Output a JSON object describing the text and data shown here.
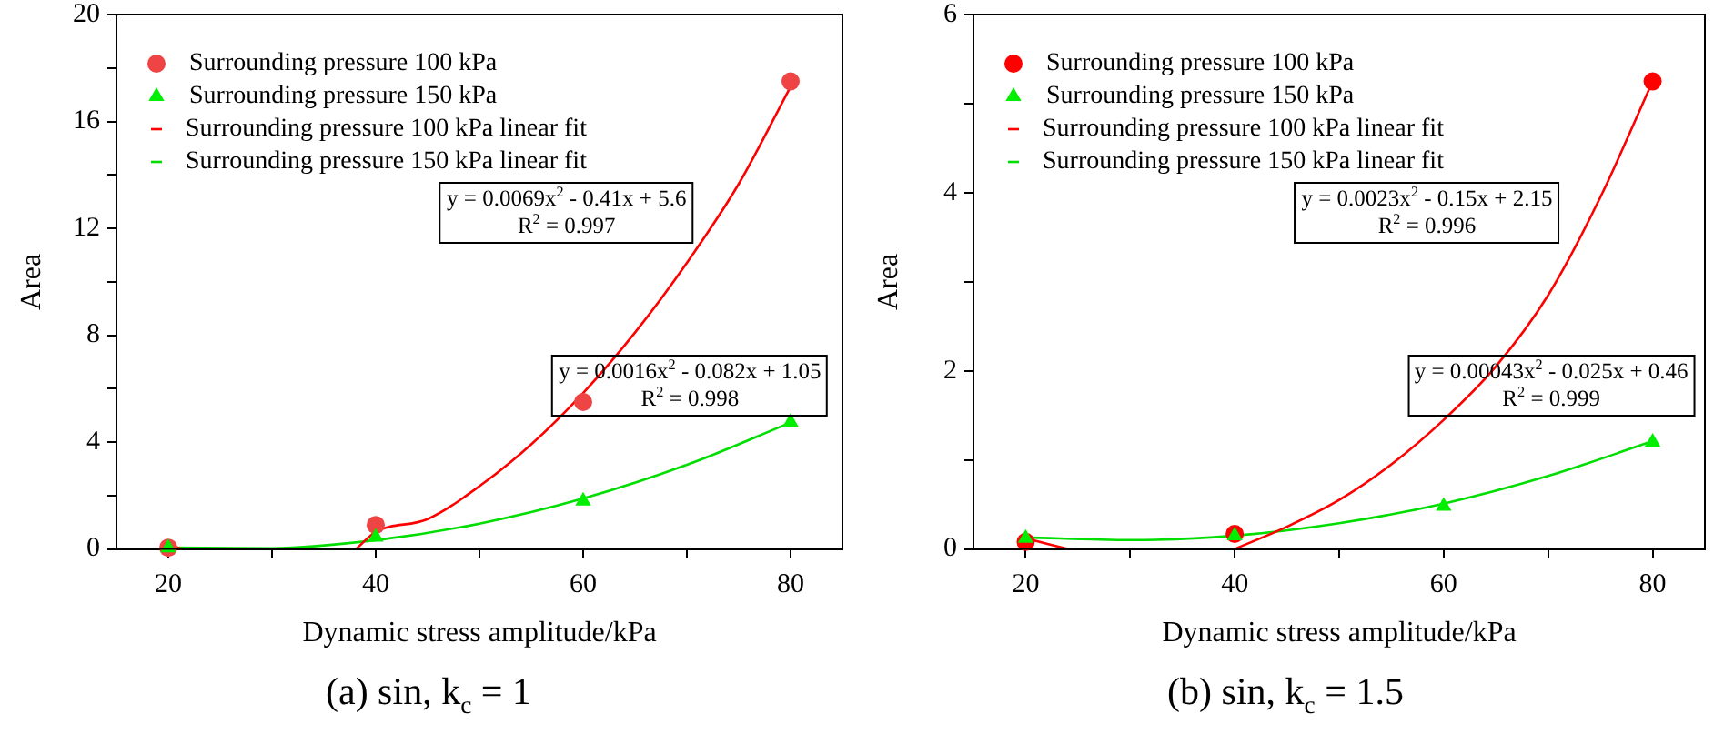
{
  "chart_data": [
    {
      "type": "scatter",
      "title": "(a) sin, k$_{c}$ = 1",
      "xlabel": "Dynamic stress amplitude/kPa",
      "ylabel": "Area",
      "x": [
        20,
        40,
        60,
        80
      ],
      "series": [
        {
          "name": "Surrounding pressure 100 kPa",
          "type": "scatter",
          "marker": "circle",
          "color": "#ee4444",
          "values": [
            0.05,
            0.9,
            5.5,
            17.5
          ]
        },
        {
          "name": "Surrounding pressure 150 kPa",
          "type": "scatter",
          "marker": "triangle",
          "color": "#00ee00",
          "values": [
            0.05,
            0.45,
            1.8,
            4.75
          ]
        },
        {
          "name": "Surrounding pressure 100 kPa linear fit",
          "type": "line",
          "marker": "none",
          "color": "#ff0000",
          "x": [
            20,
            21.3,
            30,
            38.1,
            40,
            45,
            50,
            55,
            60,
            65,
            70,
            75,
            80
          ],
          "values": [
            0.16,
            0,
            null,
            0,
            0.64,
            1.12,
            2.35,
            3.92,
            5.84,
            8.1,
            10.71,
            13.66,
            17.3
          ]
        },
        {
          "name": "Surrounding pressure 150 kPa linear fit",
          "type": "line",
          "marker": "none",
          "color": "#00dd00",
          "x": [
            20,
            30,
            40,
            50,
            60,
            70,
            80
          ],
          "values": [
            0.05,
            0.03,
            0.33,
            0.95,
            1.89,
            3.15,
            4.73
          ]
        }
      ],
      "xlim": [
        15,
        85
      ],
      "xticks": [
        20,
        {
          "value": 30,
          "label": null
        },
        40,
        {
          "value": 50,
          "label": null
        },
        60,
        {
          "value": 70,
          "label": null
        },
        80
      ],
      "ylim": [
        0,
        20
      ],
      "yticks": [
        0,
        {
          "value": 2,
          "label": null
        },
        4,
        {
          "value": 6,
          "label": null
        },
        8,
        {
          "value": 10,
          "label": null
        },
        12,
        {
          "value": 14,
          "label": null
        },
        16,
        {
          "value": 18,
          "label": null
        },
        20
      ],
      "grid": false,
      "legend": "top left",
      "annotations": [
        "y = 0.0069x$^{2}$ - 0.41x + 5.6\nR$^{2}$ = 0.997",
        "y = 0.0016x$^{2}$ - 0.082x + 1.05\nR$^{2}$ = 0.998"
      ]
    },
    {
      "type": "scatter",
      "title": "(b) sin, k$_{c}$ = 1.5",
      "xlabel": "Dynamic stress amplitude/kPa",
      "ylabel": "Area",
      "x": [
        20,
        40,
        60,
        80
      ],
      "series": [
        {
          "name": "Surrounding pressure 100 kPa",
          "type": "scatter",
          "marker": "circle",
          "color": "#ff0000",
          "values": [
            0.08,
            0.17,
            null,
            5.25
          ]
        },
        {
          "name": "Surrounding pressure 150 kPa",
          "type": "scatter",
          "marker": "triangle",
          "color": "#00ee00",
          "values": [
            0.12,
            0.15,
            0.48,
            1.2
          ]
        },
        {
          "name": "Surrounding pressure 100 kPa linear fit",
          "type": "line",
          "marker": "none",
          "color": "#ff0000",
          "x": [
            20,
            24,
            30,
            40,
            45,
            50,
            55,
            60,
            65,
            70,
            75,
            80
          ],
          "values": [
            0.12,
            0,
            null,
            0,
            0.25,
            0.55,
            0.95,
            1.45,
            2.05,
            2.85,
            3.95,
            5.25
          ]
        },
        {
          "name": "Surrounding pressure 150 kPa linear fit",
          "type": "line",
          "marker": "none",
          "color": "#00dd00",
          "x": [
            20,
            30,
            40,
            50,
            60,
            70,
            80
          ],
          "values": [
            0.13,
            0.1,
            0.15,
            0.29,
            0.51,
            0.82,
            1.21
          ]
        }
      ],
      "xlim": [
        15,
        85
      ],
      "xticks": [
        20,
        {
          "value": 30,
          "label": null
        },
        40,
        {
          "value": 50,
          "label": null
        },
        60,
        {
          "value": 70,
          "label": null
        },
        80
      ],
      "ylim": [
        0,
        6
      ],
      "yticks": [
        0,
        {
          "value": 1,
          "label": null
        },
        2,
        {
          "value": 3,
          "label": null
        },
        4,
        {
          "value": 5,
          "label": null
        },
        6
      ],
      "grid": false,
      "legend": "top left",
      "annotations": [
        "y = 0.0023x$^{2}$ - 0.15x + 2.15\nR$^{2}$ = 0.996",
        "y = 0.00043x$^{2}$ - 0.025x + 0.46\nR$^{2}$ = 0.999"
      ]
    }
  ]
}
